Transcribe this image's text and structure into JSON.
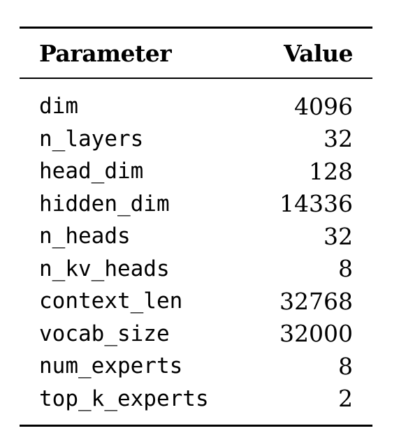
{
  "table": {
    "headers": {
      "parameter": "Parameter",
      "value": "Value"
    },
    "rows": [
      {
        "parameter": "dim",
        "value": "4096"
      },
      {
        "parameter": "n_layers",
        "value": "32"
      },
      {
        "parameter": "head_dim",
        "value": "128"
      },
      {
        "parameter": "hidden_dim",
        "value": "14336"
      },
      {
        "parameter": "n_heads",
        "value": "32"
      },
      {
        "parameter": "n_kv_heads",
        "value": "8"
      },
      {
        "parameter": "context_len",
        "value": "32768"
      },
      {
        "parameter": "vocab_size",
        "value": "32000"
      },
      {
        "parameter": "num_experts",
        "value": "8"
      },
      {
        "parameter": "top_k_experts",
        "value": "2"
      }
    ]
  }
}
